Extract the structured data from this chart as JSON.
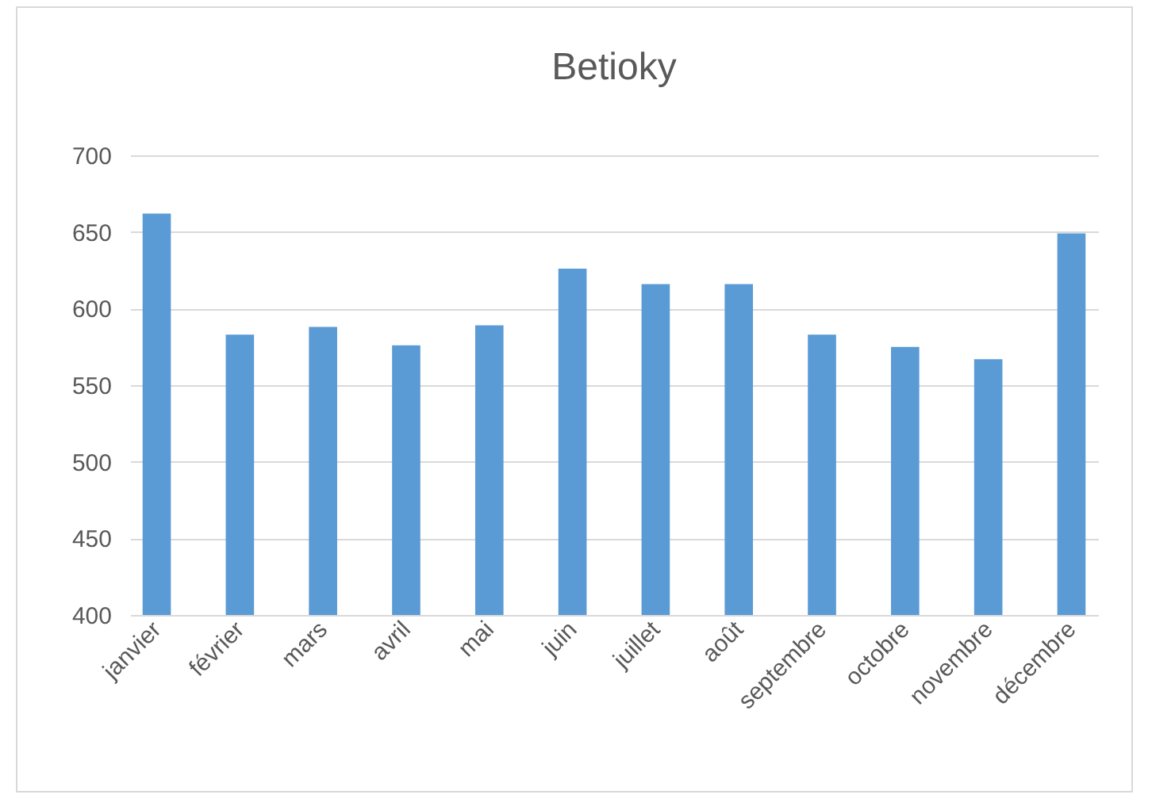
{
  "chart_data": {
    "type": "bar",
    "title": "Betioky",
    "categories": [
      "janvier",
      "février",
      "mars",
      "avril",
      "mai",
      "juin",
      "juillet",
      "août",
      "septembre",
      "octobre",
      "novembre",
      "décembre"
    ],
    "values": [
      662,
      583,
      588,
      576,
      589,
      626,
      616,
      616,
      583,
      575,
      567,
      649
    ],
    "color": "#5b9bd5",
    "ylim": [
      400,
      700
    ],
    "yticks": [
      400,
      450,
      500,
      550,
      600,
      650,
      700
    ],
    "grid": "y"
  }
}
